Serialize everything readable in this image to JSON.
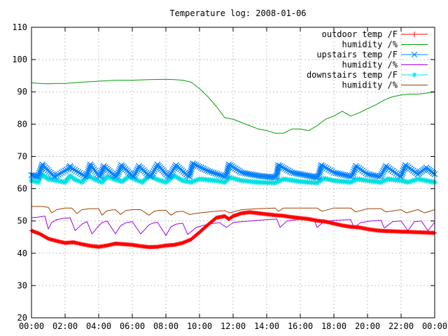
{
  "chart_data": {
    "type": "line",
    "title": "Temperature log: 2008-01-06",
    "xlabel": "",
    "ylabel": "",
    "ylim": [
      20,
      110
    ],
    "xlim": [
      0,
      24
    ],
    "yticks": [
      20,
      30,
      40,
      50,
      60,
      70,
      80,
      90,
      100,
      110
    ],
    "xticks": [
      "00:00",
      "02:00",
      "04:00",
      "06:00",
      "08:00",
      "10:00",
      "12:00",
      "14:00",
      "16:00",
      "18:00",
      "20:00",
      "22:00",
      "00:00"
    ],
    "grid": true,
    "legend_position": "top-right",
    "series": [
      {
        "name": "outdoor temp /F",
        "color": "#ff0000",
        "marker": "plus",
        "x": [
          0,
          0.5,
          1,
          1.5,
          2,
          2.5,
          3,
          3.5,
          4,
          4.5,
          5,
          5.5,
          6,
          6.5,
          7,
          7.5,
          8,
          8.5,
          9,
          9.5,
          10,
          10.5,
          11,
          11.5,
          11.75,
          12,
          12.5,
          13,
          13.5,
          14,
          14.5,
          15,
          15.5,
          16,
          16.5,
          17,
          17.5,
          18,
          18.5,
          19,
          19.5,
          20,
          20.5,
          21,
          21.5,
          22,
          22.5,
          23,
          23.5,
          24
        ],
        "y": [
          47,
          46,
          44.5,
          43.8,
          43.2,
          43.4,
          42.8,
          42.3,
          42.0,
          42.4,
          43.0,
          42.8,
          42.6,
          42.2,
          41.9,
          42.0,
          42.4,
          42.6,
          43.2,
          44.3,
          46.5,
          48.8,
          51.0,
          51.5,
          50.6,
          51.5,
          52.4,
          52.7,
          52.4,
          52.1,
          51.8,
          51.6,
          51.2,
          50.9,
          50.6,
          50.1,
          49.8,
          49.2,
          48.6,
          48.2,
          48.0,
          47.5,
          47.1,
          46.9,
          46.8,
          46.7,
          46.6,
          46.5,
          46.4,
          46.3
        ]
      },
      {
        "name": "humidity /%",
        "color": "#00a000",
        "marker": "none",
        "x": [
          0,
          0.5,
          1,
          1.5,
          2,
          3,
          4,
          5,
          6,
          7,
          8,
          8.5,
          9,
          9.5,
          10,
          10.5,
          11,
          11.5,
          12,
          12.5,
          13,
          13.5,
          14,
          14.5,
          15,
          15.5,
          16,
          16.5,
          17,
          17.5,
          18,
          18.5,
          19,
          19.5,
          20,
          20.5,
          21,
          21.5,
          22,
          22.5,
          23,
          23.5,
          24
        ],
        "y": [
          92.8,
          92.6,
          92.5,
          92.6,
          92.6,
          93.0,
          93.3,
          93.6,
          93.6,
          93.8,
          93.9,
          93.8,
          93.6,
          93.0,
          91.0,
          88.5,
          85.5,
          82.0,
          81.5,
          80.5,
          79.5,
          78.5,
          78.0,
          77.2,
          77.2,
          78.5,
          78.5,
          78.0,
          79.5,
          81.5,
          82.5,
          84.0,
          82.5,
          83.5,
          84.8,
          86.0,
          87.5,
          88.5,
          89.0,
          89.3,
          89.3,
          89.6,
          90.0
        ]
      },
      {
        "name": "upstairs temp /F",
        "color": "#0080ff",
        "marker": "cross",
        "x": [
          0,
          0.4,
          0.55,
          0.65,
          1.3,
          1.4,
          2.2,
          2.3,
          2.35,
          3.2,
          3.3,
          3.5,
          4.0,
          4.1,
          4.3,
          5.0,
          5.1,
          5.35,
          6.0,
          6.1,
          6.4,
          7.0,
          7.1,
          7.5,
          8.1,
          8.2,
          8.6,
          9.3,
          9.4,
          9.6,
          10.5,
          11.5,
          11.6,
          11.75,
          12.5,
          13.5,
          14.5,
          14.6,
          14.7,
          15.5,
          16.5,
          17.0,
          17.1,
          17.25,
          18.0,
          19.0,
          19.1,
          19.3,
          20.0,
          20.7,
          20.8,
          21.1,
          21.9,
          22.0,
          22.25,
          23.0,
          23.5,
          24.0
        ],
        "y": [
          64.2,
          63.8,
          66.0,
          67.5,
          64.0,
          63.8,
          66.2,
          67.0,
          66.5,
          63.8,
          64.0,
          67.5,
          64.0,
          63.8,
          67.0,
          63.8,
          64.0,
          67.3,
          64.0,
          63.8,
          67.0,
          64.0,
          63.8,
          67.5,
          64.0,
          63.8,
          67.3,
          64.0,
          63.8,
          67.8,
          65.5,
          63.8,
          64.0,
          67.5,
          65.0,
          64.0,
          63.5,
          64.0,
          67.3,
          65.0,
          64.0,
          63.5,
          64.0,
          67.3,
          65.0,
          63.8,
          64.0,
          67.0,
          64.5,
          63.8,
          64.0,
          67.0,
          64.0,
          63.8,
          67.3,
          64.5,
          66.5,
          64.5
        ]
      },
      {
        "name": "humidity /%",
        "color": "#a000e0",
        "marker": "none",
        "x": [
          0,
          0.4,
          0.8,
          1.0,
          1.2,
          1.5,
          1.9,
          2.3,
          2.6,
          3.0,
          3.3,
          3.6,
          4.0,
          4.2,
          4.5,
          5.0,
          5.3,
          5.6,
          6.0,
          6.5,
          7.0,
          7.2,
          7.5,
          8.0,
          8.3,
          8.6,
          9.0,
          9.3,
          9.8,
          10.5,
          11.2,
          11.6,
          12.0,
          12.5,
          13,
          14,
          14.6,
          14.8,
          15.2,
          16,
          16.8,
          17.0,
          17.4,
          18,
          19.0,
          19.2,
          19.6,
          20.2,
          20.8,
          21.0,
          21.5,
          22.0,
          22.4,
          22.8,
          23.2,
          23.6,
          24.0
        ],
        "y": [
          51.0,
          51.2,
          51.5,
          47.5,
          49.5,
          50.4,
          50.8,
          51.0,
          47.0,
          49.0,
          49.8,
          46.0,
          48.5,
          49.5,
          50.0,
          46.0,
          48.5,
          49.4,
          49.8,
          46.0,
          48.8,
          49.3,
          49.6,
          45.5,
          48.2,
          49.0,
          49.3,
          45.8,
          48.0,
          49.0,
          49.5,
          48.0,
          49.5,
          49.8,
          50.0,
          50.4,
          50.6,
          48.0,
          50.0,
          50.5,
          50.6,
          48.0,
          49.8,
          50.2,
          50.4,
          48.0,
          49.5,
          50.0,
          50.2,
          47.8,
          49.8,
          50.0,
          47.0,
          49.8,
          50.0,
          47.0,
          49.6
        ]
      },
      {
        "name": "downstairs temp /F",
        "color": "#00e0e0",
        "marker": "star",
        "x": [
          0,
          0.4,
          0.6,
          1.0,
          1.5,
          2.0,
          2.3,
          2.6,
          3.0,
          3.4,
          3.8,
          4.2,
          4.5,
          5.0,
          5.4,
          5.8,
          6.2,
          6.6,
          7.0,
          7.5,
          8.0,
          8.5,
          9.0,
          9.5,
          10.0,
          11.0,
          11.5,
          11.8,
          12.5,
          13.5,
          14.5,
          15.0,
          16.0,
          17.0,
          17.4,
          18.0,
          19.0,
          19.4,
          20.0,
          20.8,
          21.2,
          22.0,
          22.4,
          23.0,
          23.5,
          24.0
        ],
        "y": [
          62.5,
          62.0,
          64.5,
          63.0,
          62.5,
          62.0,
          64.0,
          62.8,
          62.0,
          64.0,
          62.8,
          62.0,
          63.8,
          62.8,
          62.2,
          63.8,
          62.8,
          62.0,
          64.0,
          62.8,
          62.0,
          64.0,
          62.5,
          62.0,
          63.0,
          62.5,
          62.0,
          63.5,
          62.5,
          62.0,
          61.8,
          63.0,
          62.2,
          61.8,
          63.2,
          62.5,
          62.0,
          63.0,
          62.5,
          62.0,
          63.0,
          62.5,
          62.0,
          63.0,
          62.5,
          62.0
        ]
      },
      {
        "name": "humidity /%",
        "color": "#a04000",
        "marker": "none",
        "x": [
          0,
          0.6,
          1.0,
          1.2,
          1.5,
          2.0,
          2.4,
          2.7,
          3.0,
          3.5,
          4.0,
          4.2,
          4.5,
          5.0,
          5.3,
          5.6,
          6.0,
          6.5,
          7.0,
          7.3,
          7.6,
          8.0,
          8.3,
          8.6,
          9.0,
          9.4,
          10.0,
          11.0,
          11.5,
          11.8,
          12.5,
          13.5,
          14.5,
          14.7,
          15.0,
          16.0,
          17.0,
          17.3,
          18.0,
          19.0,
          19.3,
          20.0,
          20.8,
          21.1,
          22.0,
          22.3,
          23.0,
          23.4,
          24.0
        ],
        "y": [
          54.5,
          54.5,
          54.2,
          52.5,
          53.5,
          54.0,
          54.0,
          52.3,
          53.5,
          53.8,
          53.8,
          51.8,
          53.2,
          53.5,
          52.0,
          53.2,
          53.5,
          53.5,
          51.8,
          53.0,
          53.3,
          53.3,
          51.8,
          52.8,
          53.0,
          52.0,
          52.5,
          53.0,
          53.2,
          52.5,
          53.5,
          53.8,
          54.0,
          53.0,
          54.0,
          54.0,
          54.0,
          53.0,
          54.0,
          54.0,
          52.8,
          53.8,
          53.8,
          52.8,
          53.5,
          52.5,
          53.5,
          52.5,
          53.5
        ]
      }
    ]
  }
}
